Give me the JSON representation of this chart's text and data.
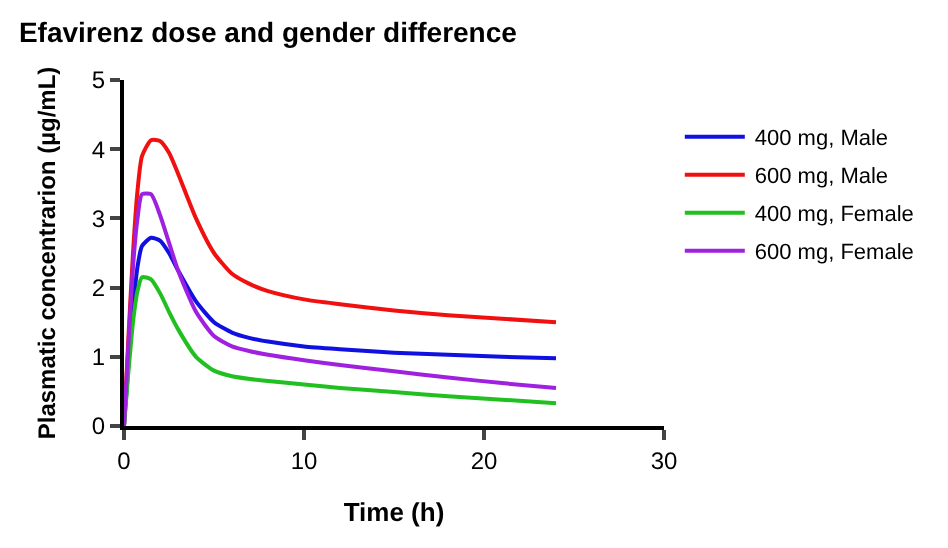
{
  "chart_data": {
    "type": "line",
    "title": "Efavirenz dose and gender difference",
    "xlabel": "Time (h)",
    "ylabel": "Plasmatic concentrarion (µg/mL)",
    "x": [
      0,
      0.25,
      0.5,
      0.75,
      1,
      1.5,
      2,
      2.5,
      3,
      4,
      5,
      6,
      7,
      8,
      10,
      12,
      15,
      18,
      21,
      24
    ],
    "series": [
      {
        "name": "400 mg, Male",
        "color": "#1010e0",
        "values": [
          0,
          0.9,
          1.7,
          2.3,
          2.6,
          2.72,
          2.68,
          2.5,
          2.25,
          1.8,
          1.5,
          1.35,
          1.27,
          1.22,
          1.15,
          1.11,
          1.06,
          1.03,
          1.0,
          0.98
        ]
      },
      {
        "name": "600 mg, Male",
        "color": "#f01010",
        "values": [
          0,
          1.3,
          2.5,
          3.4,
          3.9,
          4.13,
          4.12,
          3.95,
          3.65,
          3.0,
          2.5,
          2.2,
          2.05,
          1.95,
          1.83,
          1.76,
          1.67,
          1.6,
          1.55,
          1.5
        ]
      },
      {
        "name": "400 mg, Female",
        "color": "#20c020",
        "values": [
          0,
          0.8,
          1.5,
          1.95,
          2.15,
          2.12,
          1.92,
          1.65,
          1.4,
          1.0,
          0.8,
          0.72,
          0.68,
          0.65,
          0.6,
          0.55,
          0.49,
          0.43,
          0.38,
          0.33
        ]
      },
      {
        "name": "600 mg, Female",
        "color": "#a020e0",
        "values": [
          0,
          1.2,
          2.3,
          3.0,
          3.35,
          3.35,
          3.05,
          2.65,
          2.25,
          1.65,
          1.3,
          1.15,
          1.08,
          1.03,
          0.95,
          0.88,
          0.79,
          0.7,
          0.62,
          0.55
        ]
      }
    ],
    "xlim": [
      0,
      30
    ],
    "xticks": [
      0,
      10,
      20,
      30
    ],
    "ylim": [
      0,
      5
    ],
    "yticks": [
      0,
      1,
      2,
      3,
      4,
      5
    ],
    "legend": "right",
    "marker": "none",
    "line_style": "solid"
  }
}
